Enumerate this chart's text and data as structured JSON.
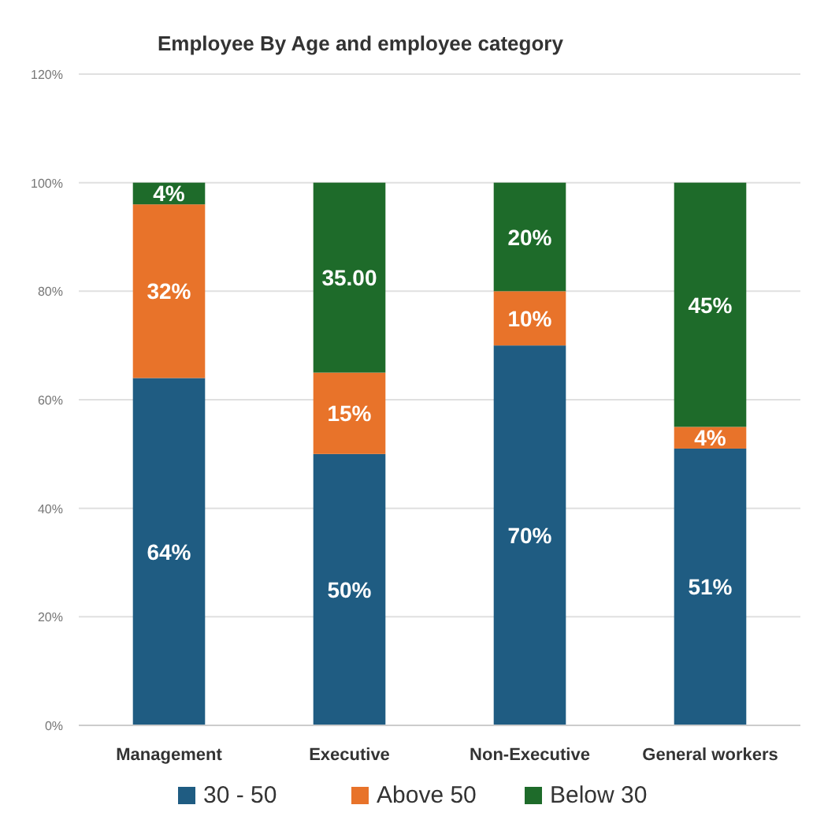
{
  "chart_data": {
    "type": "bar",
    "title": "Employee By Age and employee category",
    "categories": [
      "Management",
      "Executive",
      "Non-Executive",
      "General workers"
    ],
    "stacked": true,
    "series": [
      {
        "name": "30 - 50",
        "color": "#1f5c82",
        "values": [
          64,
          50,
          70,
          51
        ],
        "value_labels": [
          "64%",
          "50%",
          "70%",
          "51%"
        ]
      },
      {
        "name": "Above 50",
        "color": "#e8732a",
        "values": [
          32,
          15,
          10,
          4
        ],
        "value_labels": [
          "32%",
          "15%",
          "10%",
          "4%"
        ]
      },
      {
        "name": "Below 30",
        "color": "#1e6b2a",
        "values": [
          4,
          35,
          20,
          45
        ],
        "value_labels": [
          "4%",
          "35.00",
          "20%",
          "45%"
        ]
      }
    ],
    "ylim": [
      0,
      120
    ],
    "yticks": [
      {
        "value": 0,
        "label": "0%"
      },
      {
        "value": 20,
        "label": "20%"
      },
      {
        "value": 40,
        "label": "40%"
      },
      {
        "value": 60,
        "label": "60%"
      },
      {
        "value": 80,
        "label": "80%"
      },
      {
        "value": 100,
        "label": "100%"
      },
      {
        "value": 120,
        "label": "120%"
      }
    ],
    "grid": "y",
    "legend": "bottom"
  }
}
